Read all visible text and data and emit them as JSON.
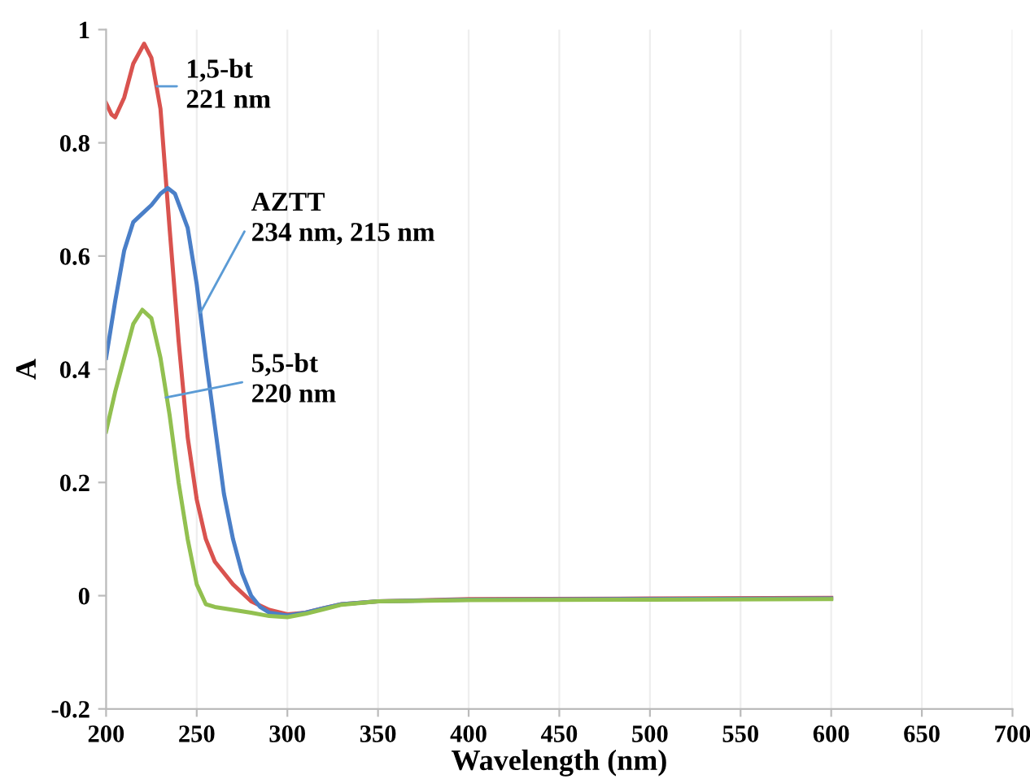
{
  "chart_data": {
    "type": "line",
    "xlabel": "Wavelength (nm)",
    "ylabel": "A",
    "xlim": [
      200,
      700
    ],
    "xticks": [
      200,
      250,
      300,
      350,
      400,
      450,
      500,
      550,
      600,
      650,
      700
    ],
    "ylim": [
      -0.2,
      1
    ],
    "yticks": [
      -0.2,
      0,
      0.2,
      0.4,
      0.6,
      0.8,
      1
    ],
    "grid": "x",
    "marker": "none",
    "line_style": "solid",
    "series": [
      {
        "color": "#d9534f",
        "x": [
          200,
          203,
          205,
          210,
          215,
          221,
          225,
          230,
          235,
          240,
          245,
          250,
          255,
          260,
          270,
          280,
          290,
          300,
          310,
          320,
          330,
          350,
          400,
          500,
          600
        ],
        "values": [
          0.87,
          0.85,
          0.845,
          0.88,
          0.94,
          0.975,
          0.95,
          0.86,
          0.65,
          0.45,
          0.28,
          0.17,
          0.1,
          0.06,
          0.02,
          -0.01,
          -0.025,
          -0.033,
          -0.03,
          -0.022,
          -0.015,
          -0.01,
          -0.006,
          -0.005,
          -0.004
        ]
      },
      {
        "color": "#4a7fc8",
        "x": [
          200,
          205,
          210,
          215,
          220,
          225,
          230,
          234,
          238,
          245,
          250,
          255,
          260,
          265,
          270,
          275,
          280,
          285,
          290,
          300,
          310,
          320,
          330,
          350,
          400,
          500,
          600
        ],
        "values": [
          0.42,
          0.52,
          0.61,
          0.66,
          0.675,
          0.69,
          0.71,
          0.72,
          0.71,
          0.65,
          0.55,
          0.42,
          0.3,
          0.18,
          0.1,
          0.04,
          0.0,
          -0.02,
          -0.03,
          -0.035,
          -0.03,
          -0.022,
          -0.015,
          -0.01,
          -0.007,
          -0.006,
          -0.005
        ]
      },
      {
        "color": "#92c050",
        "x": [
          200,
          205,
          210,
          215,
          220,
          225,
          230,
          235,
          240,
          245,
          250,
          255,
          260,
          270,
          280,
          290,
          300,
          310,
          320,
          330,
          350,
          400,
          500,
          600
        ],
        "values": [
          0.29,
          0.36,
          0.42,
          0.48,
          0.505,
          0.49,
          0.42,
          0.32,
          0.2,
          0.1,
          0.02,
          -0.015,
          -0.02,
          -0.025,
          -0.03,
          -0.036,
          -0.038,
          -0.032,
          -0.024,
          -0.016,
          -0.01,
          -0.008,
          -0.007,
          -0.006
        ]
      }
    ],
    "annotations": [
      {
        "text": "1,5-bt\n221 nm",
        "x": 228,
        "y": 0.9
      },
      {
        "text": "AZTT\n234 nm, 215 nm",
        "x": 252,
        "y": 0.5
      },
      {
        "text": "5,5-bt\n220 nm",
        "x": 233,
        "y": 0.35
      }
    ]
  }
}
